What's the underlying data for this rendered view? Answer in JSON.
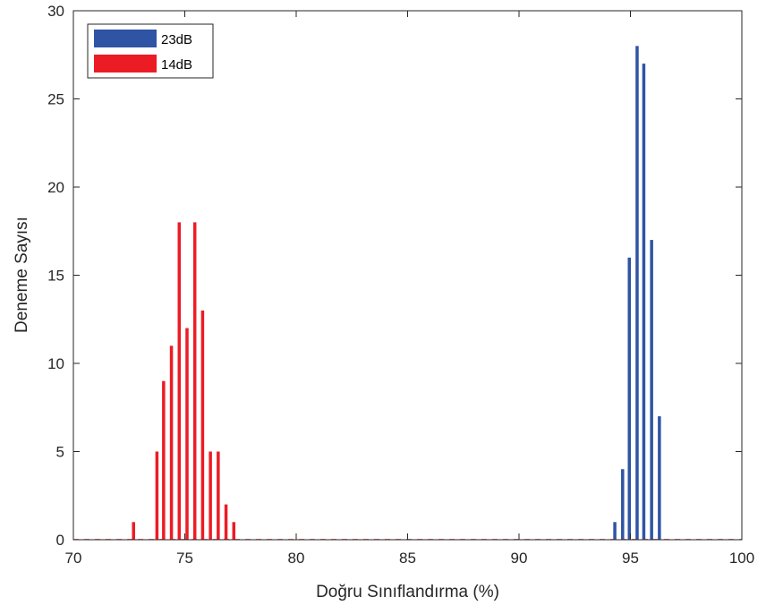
{
  "chart_data": {
    "type": "bar",
    "xlabel": "Doğru Sınıflandırma (%)",
    "ylabel": "Deneme Sayısı",
    "xlim": [
      70,
      100
    ],
    "ylim": [
      0,
      30
    ],
    "xticks": [
      "70",
      "75",
      "80",
      "85",
      "90",
      "95",
      "100"
    ],
    "yticks": [
      "0",
      "5",
      "10",
      "15",
      "20",
      "25",
      "30"
    ],
    "legend_position": "top-left",
    "grid": false,
    "series": [
      {
        "name": "23dB",
        "color": "#2f54a4",
        "x": [
          94.3,
          94.65,
          94.95,
          95.3,
          95.6,
          95.95,
          96.3
        ],
        "values": [
          1,
          4,
          16,
          28,
          27,
          17,
          7
        ]
      },
      {
        "name": "14dB",
        "color": "#ec1c24",
        "x": [
          72.7,
          73.75,
          74.05,
          74.4,
          74.75,
          75.1,
          75.45,
          75.8,
          76.15,
          76.5,
          76.85,
          77.2
        ],
        "values": [
          1,
          5,
          9,
          11,
          18,
          12,
          18,
          13,
          5,
          5,
          2,
          1
        ]
      }
    ]
  }
}
